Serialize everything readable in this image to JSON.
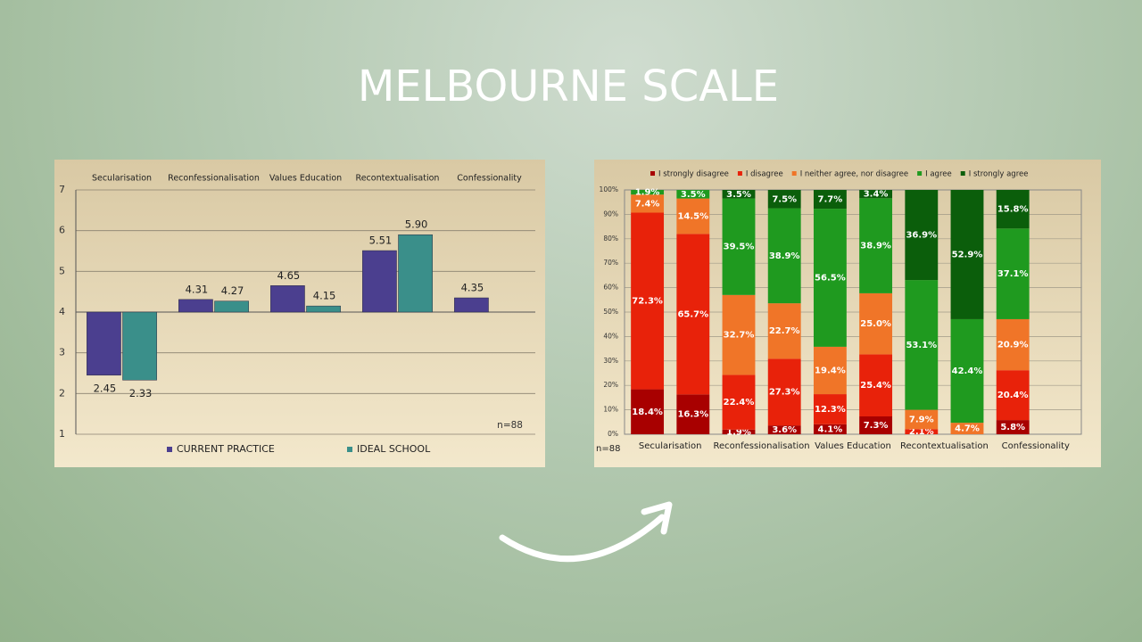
{
  "title": "MELBOURNE SCALE",
  "chart_data": [
    {
      "type": "bar",
      "categories": [
        "Secularisation",
        "Reconfessionalisation",
        "Values  Education",
        "Recontextualisation",
        "Confessionality"
      ],
      "series": [
        {
          "name": "CURRENT PRACTICE",
          "color": "#4b3f8f",
          "values": [
            2.45,
            4.31,
            4.65,
            5.51,
            4.35
          ]
        },
        {
          "name": "IDEAL SCHOOL",
          "color": "#3a8f8a",
          "values": [
            2.33,
            4.27,
            4.15,
            5.9,
            null
          ],
          "value_labels": [
            "2.33",
            "4.27",
            "4.15",
            "5.90",
            null
          ]
        }
      ],
      "baseline": 4,
      "ylim": [
        1,
        7
      ],
      "yticks": [
        1,
        2,
        3,
        4,
        5,
        6,
        7
      ],
      "grid": true,
      "annotation": "n=88",
      "legend": "bottom"
    },
    {
      "type": "stacked_bar",
      "categories": [
        "Secularisation",
        null,
        "Reconfessionalisation",
        null,
        "Values  Education",
        null,
        "Recontextualisation",
        null,
        "Confessionality",
        null
      ],
      "series": [
        {
          "name": "I strongly disagree",
          "color": "#a80000",
          "values": [
            18.4,
            16.3,
            1.9,
            3.6,
            4.1,
            7.3,
            null,
            null,
            5.8,
            null
          ],
          "value_labels": [
            "18.4%",
            "16.3%",
            "1.9%",
            "3.6%",
            "4.1%",
            "7.3%",
            null,
            null,
            "5.8%",
            null
          ]
        },
        {
          "name": "I disagree",
          "color": "#e8220a",
          "values": [
            72.3,
            65.7,
            22.4,
            27.3,
            12.3,
            25.4,
            2.1,
            null,
            20.4,
            null
          ],
          "value_labels": [
            "72.3%",
            "65.7%",
            "22.4%",
            "27.3%",
            "12.3%",
            "25.4%",
            "2.1%",
            null,
            "20.4%",
            null
          ]
        },
        {
          "name": "I neither agree, nor disagree",
          "color": "#f07528",
          "values": [
            7.4,
            14.5,
            32.7,
            22.7,
            19.4,
            25.0,
            7.9,
            4.7,
            20.9,
            null
          ],
          "value_labels": [
            "7.4%",
            "14.5%",
            "32.7%",
            "22.7%",
            "19.4%",
            "25.0%",
            "7.9%",
            "4.7%",
            "20.9%",
            null
          ]
        },
        {
          "name": "I agree",
          "color": "#1f9a1f",
          "values": [
            1.9,
            3.5,
            39.5,
            38.9,
            56.5,
            38.9,
            53.1,
            42.4,
            37.1,
            null
          ],
          "value_labels": [
            "1.9%",
            "3.5%",
            "39.5%",
            "38.9%",
            "56.5%",
            "38.9%",
            "53.1%",
            "42.4%",
            "37.1%",
            null
          ]
        },
        {
          "name": "I strongly agree",
          "color": "#0b5e0b",
          "values": [
            null,
            null,
            3.5,
            7.5,
            7.7,
            3.4,
            36.9,
            52.9,
            15.8,
            null
          ],
          "value_labels": [
            null,
            null,
            "3.5%",
            "7.5%",
            "7.7%",
            "3.4%",
            "36.9%",
            "52.9%",
            "15.8%",
            null
          ]
        }
      ],
      "ylim": [
        0,
        100
      ],
      "yticks": [
        {
          "value": 0,
          "label": "0%"
        },
        {
          "value": 10,
          "label": "10%"
        },
        {
          "value": 20,
          "label": "20%"
        },
        {
          "value": 30,
          "label": "30%"
        },
        {
          "value": 40,
          "label": "40%"
        },
        {
          "value": 50,
          "label": "50%"
        },
        {
          "value": 60,
          "label": "60%"
        },
        {
          "value": 70,
          "label": "70%"
        },
        {
          "value": 80,
          "label": "80%"
        },
        {
          "value": 90,
          "label": "90%"
        },
        {
          "value": 100,
          "label": "100%"
        }
      ],
      "grid": true,
      "annotation": "n=88",
      "legend": "top"
    }
  ]
}
